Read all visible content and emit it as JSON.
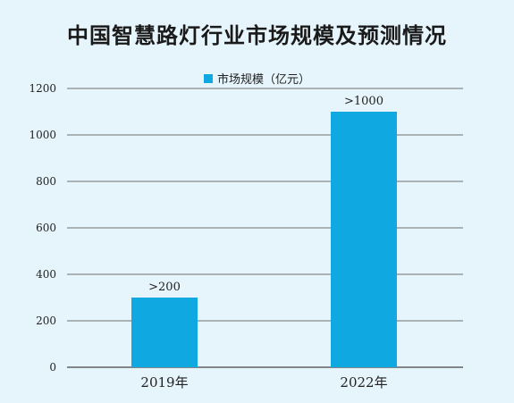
{
  "colors": {
    "background": "#e6f4fb",
    "bar": "#0fa8e0",
    "grid": "#444444"
  },
  "chart_data": {
    "type": "bar",
    "title": "中国智慧路灯行业市场规模及预测情况",
    "categories": [
      "2019年",
      "2022年"
    ],
    "series": [
      {
        "name": "市场规模（亿元）",
        "values": [
          300,
          1100
        ],
        "labels": [
          ">200",
          ">1000"
        ]
      }
    ],
    "yticks": [
      0,
      200,
      400,
      600,
      800,
      1000,
      1200
    ],
    "ylim": [
      0,
      1200
    ],
    "grid": true,
    "legend": "top-center"
  }
}
